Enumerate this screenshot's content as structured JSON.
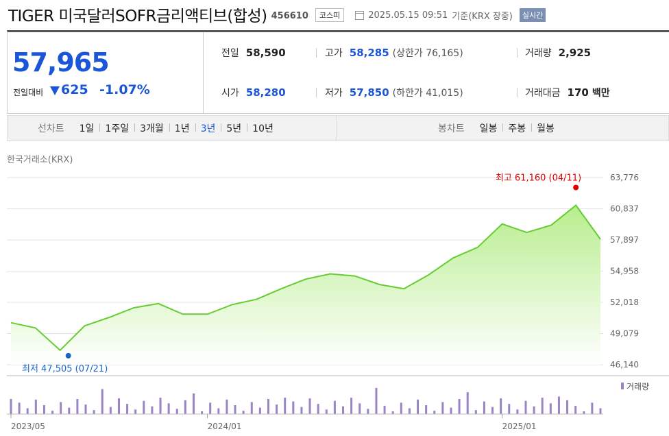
{
  "header": {
    "title": "TIGER 미국달러SOFR금리액티브(합성)",
    "code": "456610",
    "market": "코스피",
    "date": "2025.05.15 09:51",
    "basis": "기준(KRX 장중)",
    "realtime": "실시간"
  },
  "quote": {
    "price": "57,965",
    "diff_label": "전일대비",
    "diff": "625",
    "diff_pct": "-1.07%",
    "prev_close": {
      "label": "전일",
      "value": "58,590"
    },
    "open": {
      "label": "시가",
      "value": "58,280"
    },
    "high": {
      "label": "고가",
      "value": "58,285",
      "limit": "(상한가 76,165)"
    },
    "low": {
      "label": "저가",
      "value": "57,850",
      "limit": "(하한가 41,015)"
    },
    "volume": {
      "label": "거래량",
      "value": "2,925"
    },
    "amount": {
      "label": "거래대금",
      "value": "170",
      "unit": "백만"
    }
  },
  "tabs": {
    "line_label": "선차트",
    "line_tabs": [
      "1일",
      "1주일",
      "3개월",
      "1년",
      "3년",
      "5년",
      "10년"
    ],
    "active_line_tab": "3년",
    "candle_label": "봉차트",
    "candle_tabs": [
      "일봉",
      "주봉",
      "월봉"
    ]
  },
  "chart": {
    "source": "한국거래소(KRX)",
    "max_label": "최고 61,160 (04/11)",
    "min_label": "최저 47,505 (07/21)",
    "volume_legend": "거래량",
    "x_labels": [
      "2023/05",
      "2024/01",
      "2025/01"
    ],
    "y_labels": [
      "63,776",
      "60,837",
      "57,897",
      "54,958",
      "52,018",
      "49,079",
      "46,140"
    ],
    "colors": {
      "line": "#66cc33",
      "fill_top": "#b8ee8e",
      "fill_bottom": "#ffffff",
      "max": "#dd0000",
      "min": "#1c64c8",
      "volume": "#9a84c6"
    }
  },
  "chart_data": {
    "type": "area",
    "ylim": [
      46140,
      63776
    ],
    "x": [
      "2023/05",
      "2023/06",
      "2023/07",
      "2023/08",
      "2023/09",
      "2023/10",
      "2023/11",
      "2023/12",
      "2024/01",
      "2024/02",
      "2024/03",
      "2024/04",
      "2024/05",
      "2024/06",
      "2024/07",
      "2024/08",
      "2024/09",
      "2024/10",
      "2024/11",
      "2024/12",
      "2025/01",
      "2025/02",
      "2025/03",
      "2025/04",
      "2025/05"
    ],
    "values": [
      50100,
      49600,
      47505,
      49800,
      50600,
      51500,
      51900,
      50900,
      50900,
      51800,
      52300,
      53300,
      54200,
      54700,
      54500,
      53700,
      53300,
      54600,
      56200,
      57200,
      59400,
      58600,
      59300,
      61160,
      57965
    ],
    "volume_values": [
      2925
    ]
  }
}
